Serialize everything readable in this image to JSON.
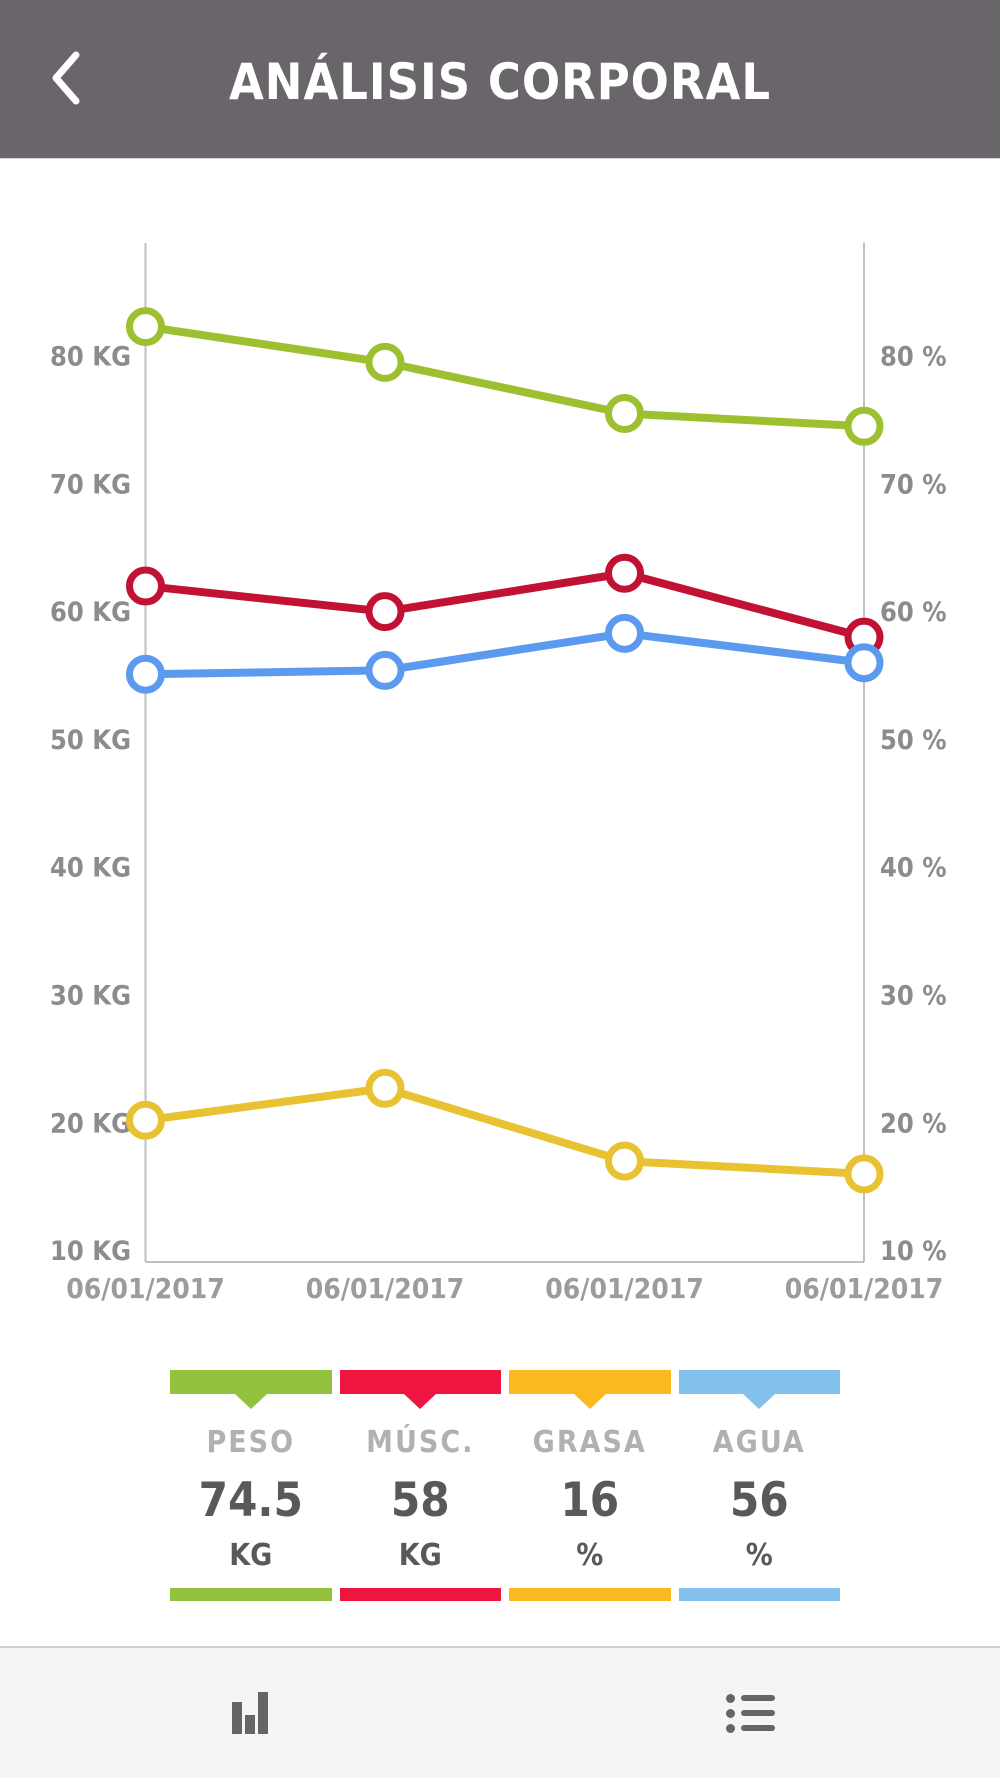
{
  "header": {
    "title": "ANÁLISIS CORPORAL",
    "back_icon": "chevron-left"
  },
  "chart_data": {
    "type": "line",
    "x_labels": [
      "06/01/2017",
      "06/01/2017",
      "06/01/2017",
      "06/01/2017"
    ],
    "y_axis": {
      "min": 10,
      "max": 80,
      "step": 10,
      "left_unit": "KG",
      "right_unit": "%"
    },
    "grid": false,
    "legend_position": "bottom",
    "series": [
      {
        "name": "PESO",
        "unit": "KG",
        "values": [
          82.3,
          79.5,
          75.5,
          74.5
        ],
        "current": "74.5",
        "line_color": "#9cc02f",
        "legend_color": "#92c13e"
      },
      {
        "name": "MÚSC.",
        "unit": "KG",
        "values": [
          62,
          60,
          63,
          58
        ],
        "current": "58",
        "line_color": "#c11233",
        "legend_color": "#ee1540"
      },
      {
        "name": "GRASA",
        "unit": "%",
        "values": [
          20.2,
          22.7,
          17,
          16
        ],
        "current": "16",
        "line_color": "#e8c232",
        "legend_color": "#fcb820"
      },
      {
        "name": "AGUA",
        "unit": "%",
        "values": [
          55.1,
          55.4,
          58.3,
          56
        ],
        "current": "56",
        "line_color": "#5c9af0",
        "legend_color": "#84c0ec"
      }
    ]
  },
  "colors": {
    "header_bg": "#6a656a",
    "axis_line": "#c0c0c0",
    "tick_text": "#8c8c8c",
    "date_text": "#9c9c9c",
    "toolbar_bg": "#f6f5f5",
    "toolbar_icon": "#666466"
  },
  "toolbar": {
    "tabs": [
      {
        "name": "chart-view",
        "icon": "bar-chart-icon"
      },
      {
        "name": "list-view",
        "icon": "list-icon"
      }
    ]
  }
}
